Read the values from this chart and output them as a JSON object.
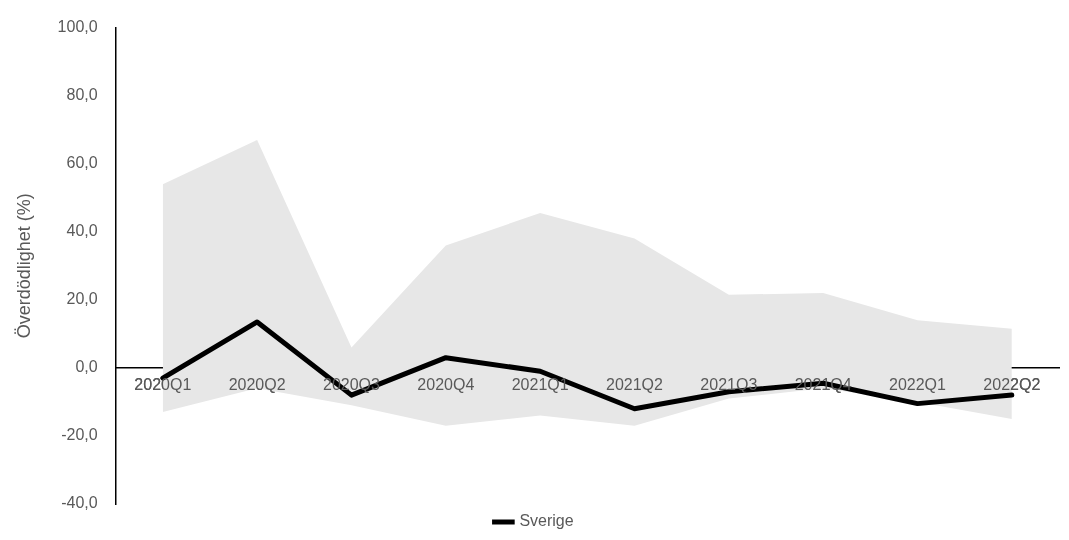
{
  "chart_data": {
    "type": "line",
    "ylabel": "Överdödlighet (%)",
    "categories": [
      "2020Q1",
      "2020Q2",
      "2020Q3",
      "2020Q4",
      "2021Q1",
      "2021Q2",
      "2021Q3",
      "2021Q4",
      "2022Q1",
      "2022Q2"
    ],
    "series": [
      {
        "name": "Sverige",
        "color": "#000000",
        "values": [
          -3,
          13.5,
          -8,
          3,
          -1,
          -12,
          -7,
          -4.5,
          -10.5,
          -8
        ],
        "lower": [
          -13,
          -6,
          -11,
          -17,
          -14,
          -17,
          -9,
          -6,
          -10,
          -15
        ],
        "upper": [
          54,
          67,
          6,
          36,
          45.5,
          38,
          21.5,
          22,
          14,
          11.5
        ]
      }
    ],
    "ylim": [
      -40,
      100
    ],
    "yticks": [
      {
        "value": -40,
        "label": "-40,0"
      },
      {
        "value": -20,
        "label": "-20,0"
      },
      {
        "value": 0,
        "label": "0,0"
      },
      {
        "value": 20,
        "label": "20,0"
      },
      {
        "value": 40,
        "label": "40,0"
      },
      {
        "value": 60,
        "label": "60,0"
      },
      {
        "value": 80,
        "label": "80,0"
      },
      {
        "value": 100,
        "label": "100,0"
      }
    ],
    "grid": false,
    "legend": "bottom",
    "marker": "none",
    "line_style": "solid"
  }
}
